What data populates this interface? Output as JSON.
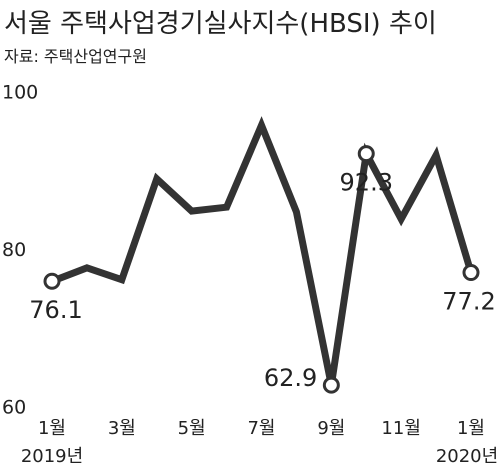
{
  "chart_data": {
    "type": "line",
    "title": "서울 주택사업경기실사지수(HBSI) 추이",
    "subtitle": "자료: 주택산업연구원",
    "categories": [
      "1월",
      null,
      "3월",
      null,
      "5월",
      null,
      "7월",
      null,
      "9월",
      null,
      "11월",
      null,
      "1월"
    ],
    "year_labels": [
      "2019년",
      "2020년"
    ],
    "values": [
      76.1,
      77.8,
      76.3,
      89.1,
      85.0,
      85.5,
      95.9,
      84.9,
      62.9,
      92.3,
      84.0,
      92.1,
      77.2
    ],
    "value_labels": [
      "76.1",
      null,
      null,
      null,
      null,
      null,
      null,
      null,
      "62.9",
      "92.3",
      null,
      null,
      "77.2"
    ],
    "color": "#333333",
    "ylim": [
      60,
      100
    ],
    "yticks": [
      60,
      80,
      100
    ],
    "grid": false
  }
}
